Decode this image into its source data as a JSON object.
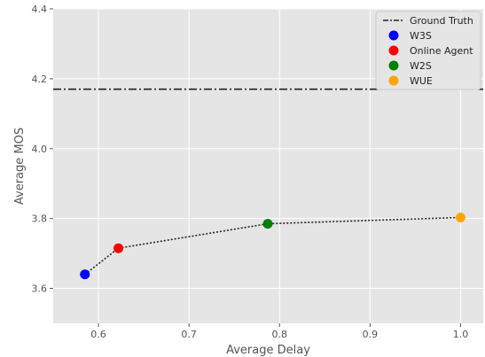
{
  "chart_data": {
    "type": "scatter",
    "title": "",
    "xlabel": "Average Delay",
    "ylabel": "Average MOS",
    "xlim": [
      0.55,
      1.025
    ],
    "ylim": [
      3.5,
      4.4
    ],
    "xticks": [
      0.6,
      0.7,
      0.8,
      0.9,
      1.0
    ],
    "xtick_labels": [
      "0.6",
      "0.7",
      "0.8",
      "0.9",
      "1.0"
    ],
    "yticks": [
      3.6,
      3.8,
      4.0,
      4.2,
      4.4
    ],
    "ytick_labels": [
      "3.6",
      "3.8",
      "4.0",
      "4.2",
      "4.4"
    ],
    "grid": true,
    "legend_position": "top-right",
    "reference_line": {
      "name": "Ground Truth",
      "y": 4.17,
      "style": "dash-dot",
      "color": "#222222"
    },
    "connector": {
      "style": "dotted",
      "color": "#222222"
    },
    "series": [
      {
        "name": "W3S",
        "x": 0.585,
        "y": 3.64,
        "color": "#0000ff"
      },
      {
        "name": "Online Agent",
        "x": 0.622,
        "y": 3.715,
        "color": "#ff0000"
      },
      {
        "name": "W2S",
        "x": 0.787,
        "y": 3.785,
        "color": "#008000"
      },
      {
        "name": "WUE",
        "x": 1.0,
        "y": 3.803,
        "color": "#ffa500"
      }
    ]
  }
}
